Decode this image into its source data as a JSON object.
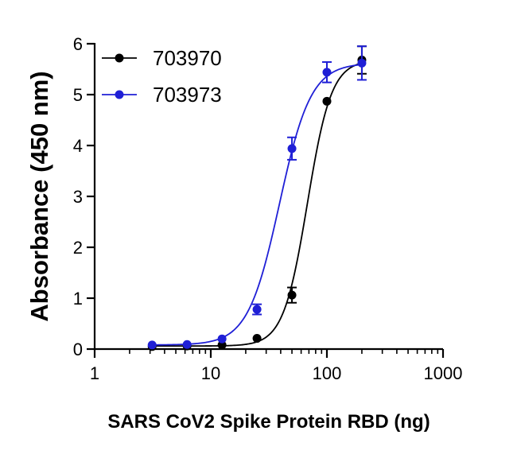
{
  "chart_data": {
    "type": "scatter",
    "xlabel": "SARS CoV2 Spike Protein RBD (ng)",
    "ylabel": "Absorbance (450 nm)",
    "xscale": "log",
    "xlim": [
      1,
      1000
    ],
    "ylim": [
      0,
      6
    ],
    "x_ticks": [
      1,
      10,
      100,
      1000
    ],
    "x_tick_labels": [
      "1",
      "10",
      "100",
      "1000"
    ],
    "y_ticks": [
      0,
      1,
      2,
      3,
      4,
      5,
      6
    ],
    "y_tick_labels": [
      "0",
      "1",
      "2",
      "3",
      "4",
      "5",
      "6"
    ],
    "grid": false,
    "legend_position": "top-left",
    "series": [
      {
        "name": "703970",
        "color": "#000000",
        "x": [
          3.125,
          6.25,
          12.5,
          25,
          50,
          100,
          200
        ],
        "y": [
          0.05,
          0.06,
          0.08,
          0.21,
          1.06,
          4.87,
          5.68
        ],
        "error": [
          0.02,
          0.02,
          0.02,
          0.03,
          0.15,
          0.05,
          0.27
        ],
        "fit": {
          "bottom": 0.06,
          "top": 5.68,
          "ec50": 68,
          "hill": 4.2
        }
      },
      {
        "name": "703973",
        "color": "#1f1fd6",
        "x": [
          3.125,
          6.25,
          12.5,
          25,
          50,
          100,
          200
        ],
        "y": [
          0.08,
          0.09,
          0.2,
          0.78,
          3.94,
          5.44,
          5.62
        ],
        "error": [
          0.02,
          0.02,
          0.03,
          0.1,
          0.22,
          0.2,
          0.33
        ],
        "fit": {
          "bottom": 0.08,
          "top": 5.62,
          "ec50": 39,
          "hill": 3.2
        }
      }
    ]
  }
}
